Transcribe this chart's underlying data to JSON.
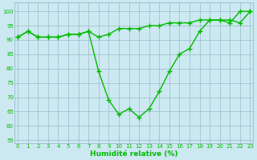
{
  "title": "",
  "xlabel": "Humidité relative (%)",
  "x": [
    0,
    1,
    2,
    3,
    4,
    5,
    6,
    7,
    8,
    9,
    10,
    11,
    12,
    13,
    14,
    15,
    16,
    17,
    18,
    19,
    20,
    21,
    22,
    23
  ],
  "y_upper": [
    91,
    93,
    91,
    91,
    91,
    92,
    92,
    93,
    91,
    92,
    94,
    94,
    94,
    95,
    95,
    96,
    96,
    96,
    97,
    97,
    97,
    97,
    96,
    100
  ],
  "y_lower": [
    91,
    93,
    91,
    91,
    91,
    92,
    92,
    93,
    79,
    69,
    64,
    66,
    63,
    66,
    72,
    79,
    85,
    87,
    93,
    97,
    97,
    96,
    100,
    100
  ],
  "ylim": [
    54,
    103
  ],
  "yticks": [
    55,
    60,
    65,
    70,
    75,
    80,
    85,
    90,
    95,
    100
  ],
  "xlim": [
    -0.3,
    23.3
  ],
  "line_color": "#00bb00",
  "bg_color": "#cce8f0",
  "grid_color": "#99bbcc",
  "marker": "+",
  "markersize": 4,
  "linewidth": 1.0,
  "tick_fontsize": 5.0,
  "xlabel_fontsize": 6.5
}
